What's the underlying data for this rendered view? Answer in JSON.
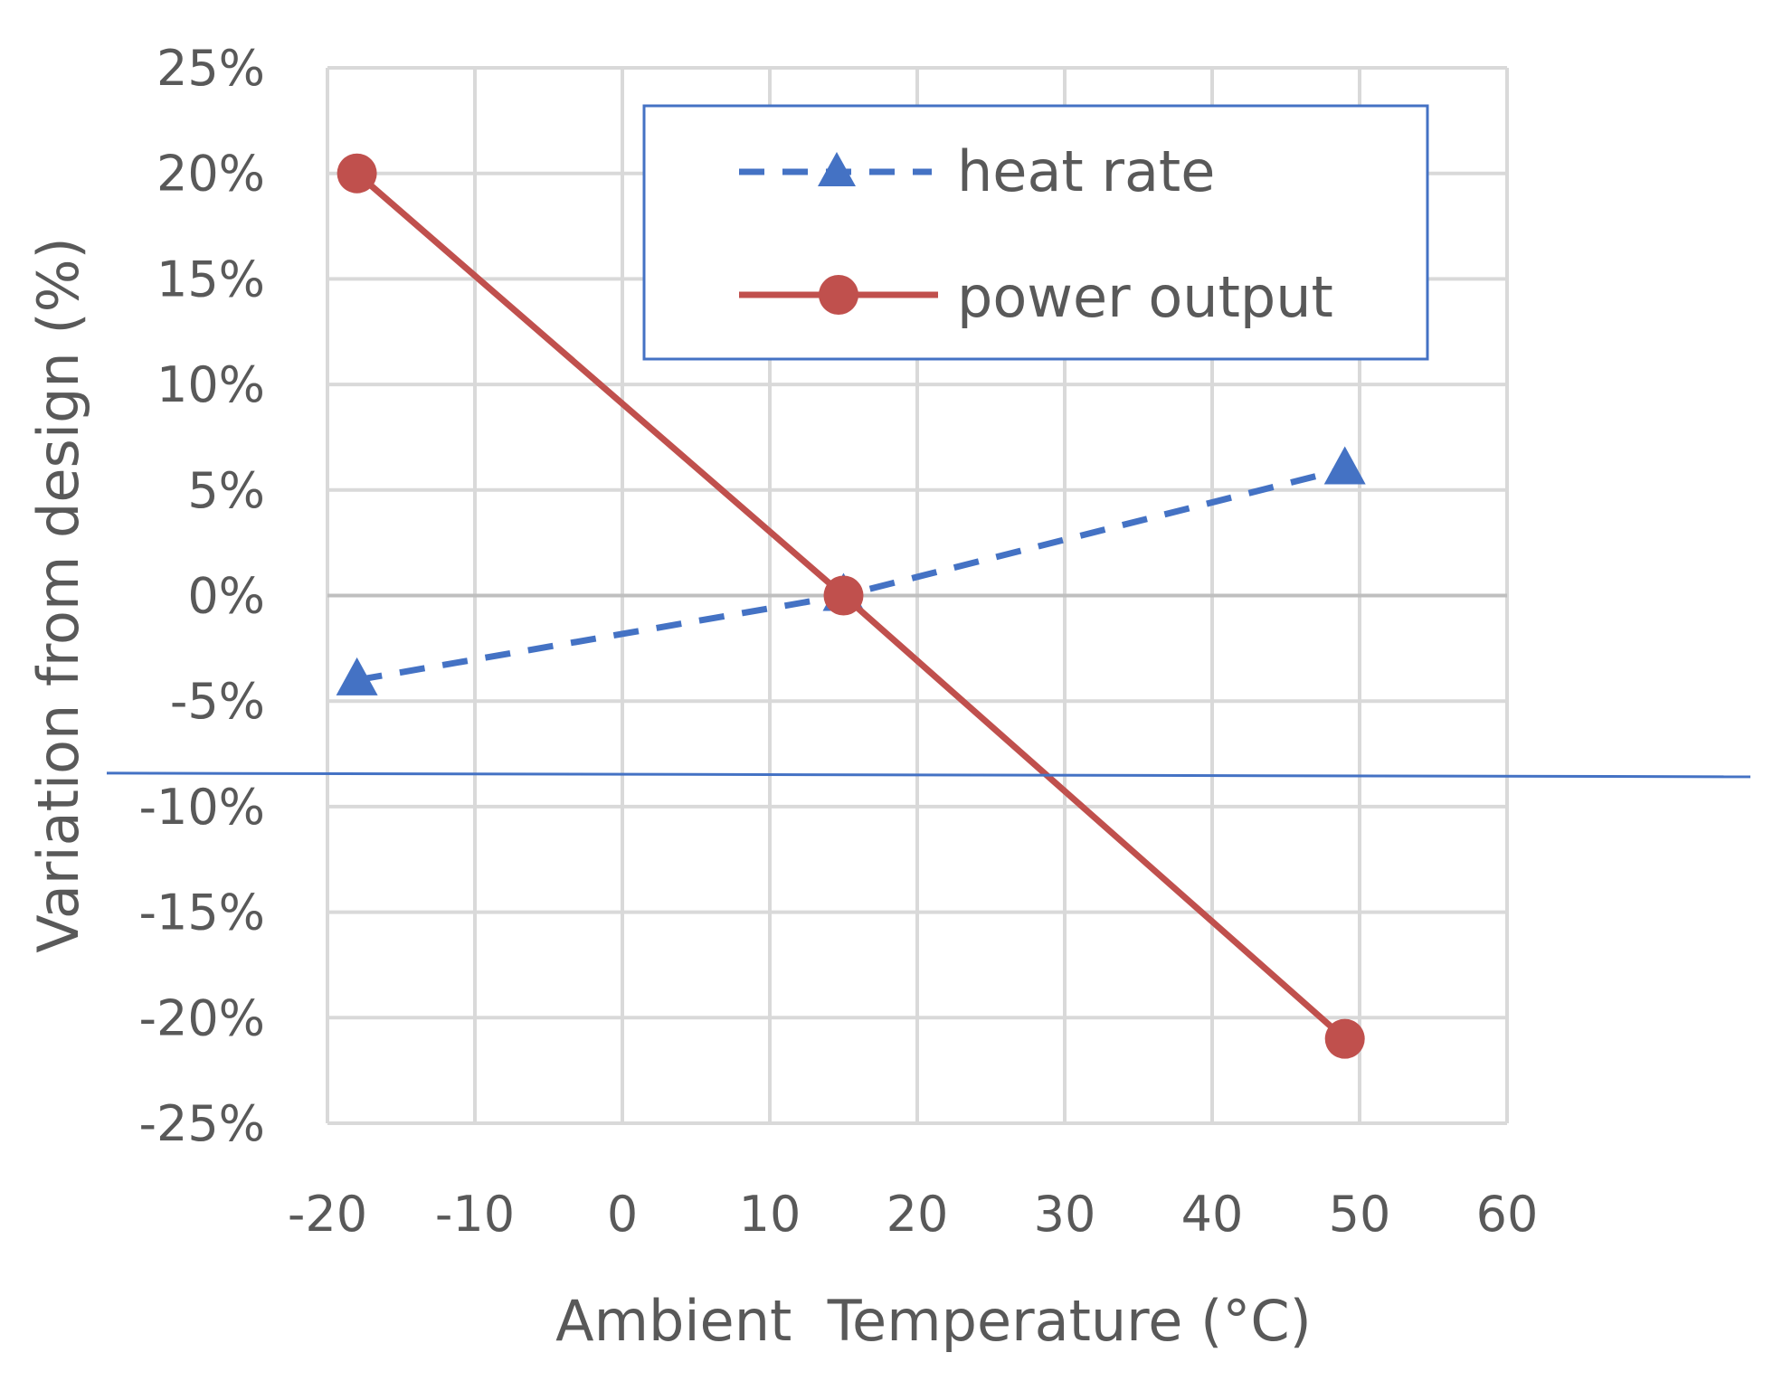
{
  "chart_data": {
    "type": "line",
    "title": "",
    "xlabel": "Ambient  Temperature (°C)",
    "ylabel": "Variation from design (%)",
    "xlim": [
      -20,
      60
    ],
    "ylim": [
      -25,
      25
    ],
    "x_ticks": [
      -20,
      -10,
      0,
      10,
      20,
      30,
      40,
      50,
      60
    ],
    "x_tick_labels": [
      "-20",
      "-10",
      "0",
      "10",
      "20",
      "30",
      "40",
      "50",
      "60"
    ],
    "y_ticks": [
      25,
      20,
      15,
      10,
      5,
      0,
      -5,
      -10,
      -15,
      -20,
      -25
    ],
    "y_tick_labels": [
      "25%",
      "20%",
      "15%",
      "10%",
      "5%",
      "0%",
      "-5%",
      "-10%",
      "-15%",
      "-20%",
      "-25%"
    ],
    "grid": true,
    "legend_position": "top-right",
    "series": [
      {
        "name": "heat rate",
        "color": "#4472C4",
        "line_style": "dashed",
        "marker": "triangle",
        "x": [
          -18,
          15,
          49
        ],
        "y": [
          -4,
          0,
          6
        ]
      },
      {
        "name": "power output",
        "color": "#C0504D",
        "line_style": "solid",
        "marker": "circle",
        "x": [
          -18,
          15,
          49
        ],
        "y": [
          20,
          0,
          -21
        ]
      }
    ],
    "reference_line": {
      "color": "#4472C4",
      "y": -8.5
    }
  }
}
